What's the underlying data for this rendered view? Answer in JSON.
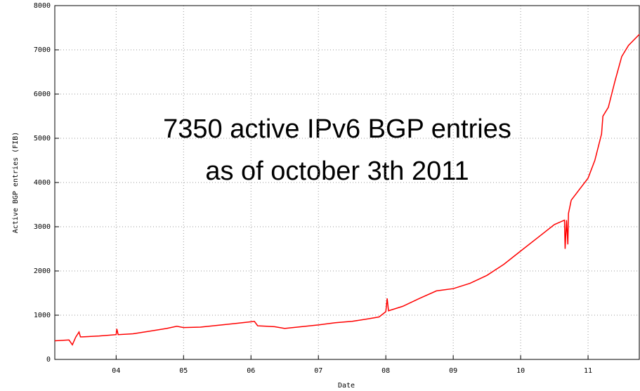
{
  "chart_data": {
    "type": "line",
    "annotation": [
      "7350 active IPv6 BGP entries",
      "as of october 3th 2011"
    ],
    "x_label": "Date",
    "y_label": "Active BGP entries (FIB)",
    "xlim": [
      2003.09,
      2011.76
    ],
    "xticks": [
      {
        "value": 2004,
        "label": "04"
      },
      {
        "value": 2005,
        "label": "05"
      },
      {
        "value": 2006,
        "label": "06"
      },
      {
        "value": 2007,
        "label": "07"
      },
      {
        "value": 2008,
        "label": "08"
      },
      {
        "value": 2009,
        "label": "09"
      },
      {
        "value": 2010,
        "label": "10"
      },
      {
        "value": 2011,
        "label": "11"
      }
    ],
    "ylim": [
      0,
      8000
    ],
    "yticks": [
      0,
      1000,
      2000,
      3000,
      4000,
      5000,
      6000,
      7000,
      8000
    ],
    "grid": true,
    "series": [
      {
        "color": "#ff0000",
        "x": [
          2003.09,
          2003.3,
          2003.35,
          2003.4,
          2003.45,
          2003.47,
          2003.5,
          2003.75,
          2004.0,
          2004.01,
          2004.03,
          2004.25,
          2004.5,
          2004.75,
          2004.9,
          2005.0,
          2005.25,
          2005.5,
          2005.75,
          2006.0,
          2006.05,
          2006.1,
          2006.35,
          2006.5,
          2006.75,
          2007.0,
          2007.25,
          2007.5,
          2007.75,
          2007.9,
          2008.0,
          2008.02,
          2008.04,
          2008.25,
          2008.5,
          2008.75,
          2009.0,
          2009.25,
          2009.5,
          2009.75,
          2010.0,
          2010.25,
          2010.5,
          2010.65,
          2010.66,
          2010.68,
          2010.7,
          2010.71,
          2010.75,
          2011.0,
          2011.1,
          2011.2,
          2011.22,
          2011.3,
          2011.4,
          2011.5,
          2011.6,
          2011.76
        ],
        "values": [
          420,
          440,
          330,
          500,
          620,
          510,
          510,
          530,
          560,
          690,
          560,
          580,
          640,
          700,
          750,
          720,
          730,
          770,
          810,
          850,
          860,
          760,
          740,
          700,
          740,
          780,
          830,
          860,
          920,
          960,
          1080,
          1380,
          1100,
          1200,
          1380,
          1550,
          1600,
          1720,
          1900,
          2150,
          2450,
          2750,
          3050,
          3150,
          2500,
          3150,
          2600,
          3300,
          3600,
          4100,
          4500,
          5100,
          5500,
          5700,
          6300,
          6850,
          7100,
          7350
        ]
      }
    ]
  }
}
